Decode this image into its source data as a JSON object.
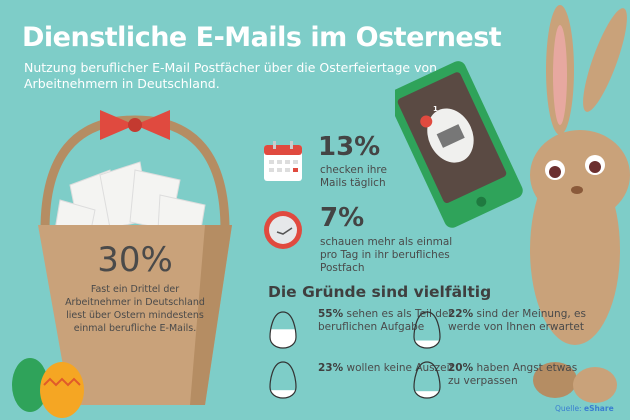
{
  "header": {
    "title": "Dienstliche E-Mails im Osternest",
    "subtitle": "Nutzung beruflicher E-Mail Postfächer über die Osterfeiertage von Arbeitnehmern in Deutschland."
  },
  "basket": {
    "value": "30%",
    "text": "Fast ein Drittel der Arbeitnehmer in Deutschland liest über Ostern mindestens einmal berufliche E-Mails."
  },
  "stats": [
    {
      "icon": "calendar-icon",
      "value": "13%",
      "text": "checken ihre Mails täglich"
    },
    {
      "icon": "clock-icon",
      "value": "7%",
      "text": "schauen mehr als einmal pro Tag in ihr berufliches Postfach"
    }
  ],
  "reasons": {
    "title": "Die Gründe sind vielfältig",
    "items": [
      {
        "value": "55%",
        "text": "sehen es als Teil der beruflichen Aufgabe",
        "fill": 0.55
      },
      {
        "value": "22%",
        "text": "sind der Meinung, es werde von Ihnen erwartet",
        "fill": 0.22
      },
      {
        "value": "23%",
        "text": "wollen keine Auszeit",
        "fill": 0.23
      },
      {
        "value": "20%",
        "text": "haben Angst etwas zu verpassen",
        "fill": 0.2
      }
    ]
  },
  "phone": {
    "badge": "1"
  },
  "source": {
    "label": "Quelle:",
    "brand": "eShare"
  },
  "colors": {
    "background": "#7ecdc8",
    "basket": "#c9a27a",
    "accent_red": "#e04a3f",
    "phone_green": "#2fa35a"
  }
}
